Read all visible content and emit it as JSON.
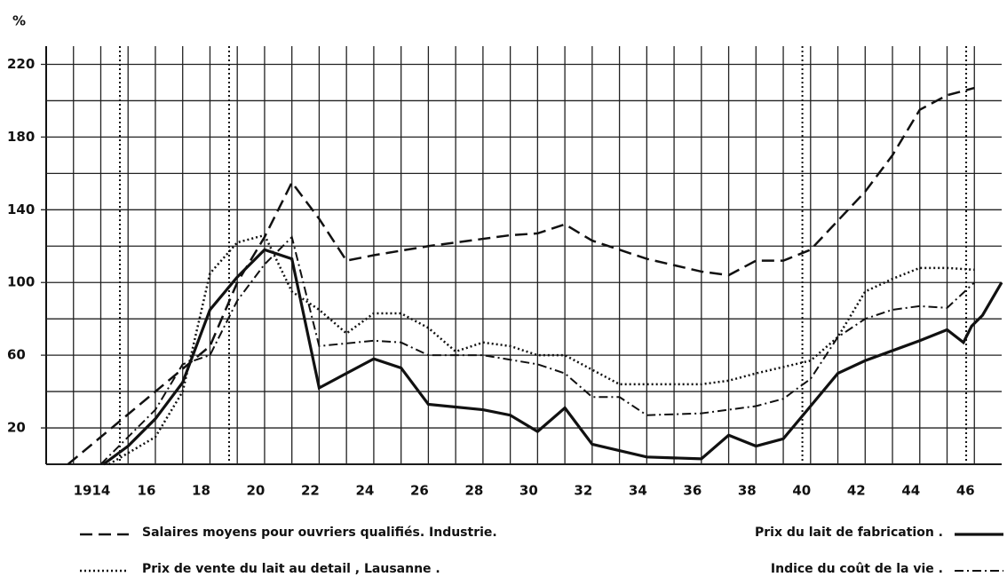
{
  "chart_data": {
    "type": "line",
    "y_label": "%",
    "xlim": [
      1912,
      1947
    ],
    "ylim": [
      0,
      230
    ],
    "xticks": [
      1914,
      {
        "value": 1916,
        "label": "16"
      },
      {
        "value": 1918,
        "label": "18"
      },
      {
        "value": 1920,
        "label": "20"
      },
      {
        "value": 1922,
        "label": "22"
      },
      {
        "value": 1924,
        "label": "24"
      },
      {
        "value": 1926,
        "label": "26"
      },
      {
        "value": 1928,
        "label": "28"
      },
      {
        "value": 1930,
        "label": "30"
      },
      {
        "value": 1932,
        "label": "32"
      },
      {
        "value": 1934,
        "label": "34"
      },
      {
        "value": 1936,
        "label": "36"
      },
      {
        "value": 1938,
        "label": "38"
      },
      {
        "value": 1940,
        "label": "40"
      },
      {
        "value": 1942,
        "label": "42"
      },
      {
        "value": 1944,
        "label": "44"
      },
      {
        "value": 1946,
        "label": "46"
      }
    ],
    "minor_xticks": [
      1913,
      1915,
      1917,
      1919,
      1921,
      1923,
      1925,
      1927,
      1929,
      1931,
      1933,
      1935,
      1937,
      1939,
      1941,
      1943,
      1945
    ],
    "yticks": [
      20,
      60,
      100,
      140,
      180,
      220
    ],
    "minor_yticks": [
      0,
      40,
      80,
      120,
      160,
      200
    ],
    "reference_lines_x": [
      1914.7,
      1918.7,
      1939.7,
      1945.7
    ],
    "grid": true,
    "series": [
      {
        "name": "Salaires moyens pour ouvriers qualifiés. Industrie.",
        "color": "#111",
        "style": "dashed",
        "x": [
          1912.8,
          1916,
          1918,
          1919,
          1920,
          1921,
          1922,
          1923,
          1924,
          1926,
          1928,
          1929,
          1930,
          1931,
          1932,
          1934,
          1936,
          1937,
          1938,
          1939,
          1940,
          1942,
          1943,
          1944,
          1945,
          1946
        ],
        "values": [
          0,
          40,
          65,
          100,
          125,
          155,
          135,
          112,
          115,
          120,
          124,
          126,
          127,
          132,
          123,
          113,
          106,
          104,
          112,
          112,
          118,
          150,
          170,
          195,
          203,
          207
        ]
      },
      {
        "name": "Prix de vente du lait au detail , Lausanne .",
        "color": "#111",
        "style": "dotted",
        "x": [
          1914.3,
          1916,
          1917,
          1918,
          1919,
          1920,
          1921,
          1922,
          1923,
          1924,
          1925,
          1926,
          1927,
          1928,
          1929,
          1930,
          1931,
          1932,
          1933,
          1934,
          1936,
          1937,
          1938,
          1940,
          1941,
          1942,
          1943,
          1944,
          1945,
          1946
        ],
        "values": [
          0,
          15,
          40,
          105,
          122,
          126,
          95,
          85,
          72,
          83,
          83,
          75,
          62,
          67,
          65,
          60,
          60,
          52,
          44,
          44,
          44,
          46,
          50,
          57,
          70,
          95,
          102,
          108,
          108,
          107
        ]
      },
      {
        "name": "Prix du lait de fabrication .",
        "color": "#111",
        "style": "solid",
        "x": [
          1914.1,
          1915,
          1916,
          1917,
          1918,
          1919,
          1920,
          1921,
          1922,
          1924,
          1925,
          1926,
          1928,
          1929,
          1930,
          1931,
          1932,
          1934,
          1936,
          1937,
          1938,
          1939,
          1940,
          1941,
          1942,
          1944,
          1945,
          1945.6,
          1945.9,
          1946.3,
          1947
        ],
        "values": [
          0,
          10,
          25,
          45,
          85,
          103,
          118,
          113,
          42,
          58,
          53,
          33,
          30,
          27,
          18,
          31,
          11,
          4,
          3,
          16,
          10,
          14,
          32,
          50,
          57,
          68,
          74,
          67,
          76,
          82,
          100
        ]
      },
      {
        "name": "Indice du coût de la vie .",
        "color": "#111",
        "style": "dashdot",
        "x": [
          1914,
          1916,
          1917,
          1918,
          1919,
          1920,
          1921,
          1922,
          1924,
          1925,
          1926,
          1928,
          1930,
          1931,
          1932,
          1933,
          1934,
          1936,
          1938,
          1939,
          1940,
          1941,
          1942,
          1943,
          1944,
          1945,
          1946
        ],
        "values": [
          0,
          30,
          55,
          60,
          90,
          110,
          125,
          65,
          68,
          67,
          60,
          60,
          55,
          50,
          37,
          37,
          27,
          28,
          32,
          36,
          47,
          70,
          80,
          85,
          87,
          86,
          100
        ]
      }
    ]
  }
}
